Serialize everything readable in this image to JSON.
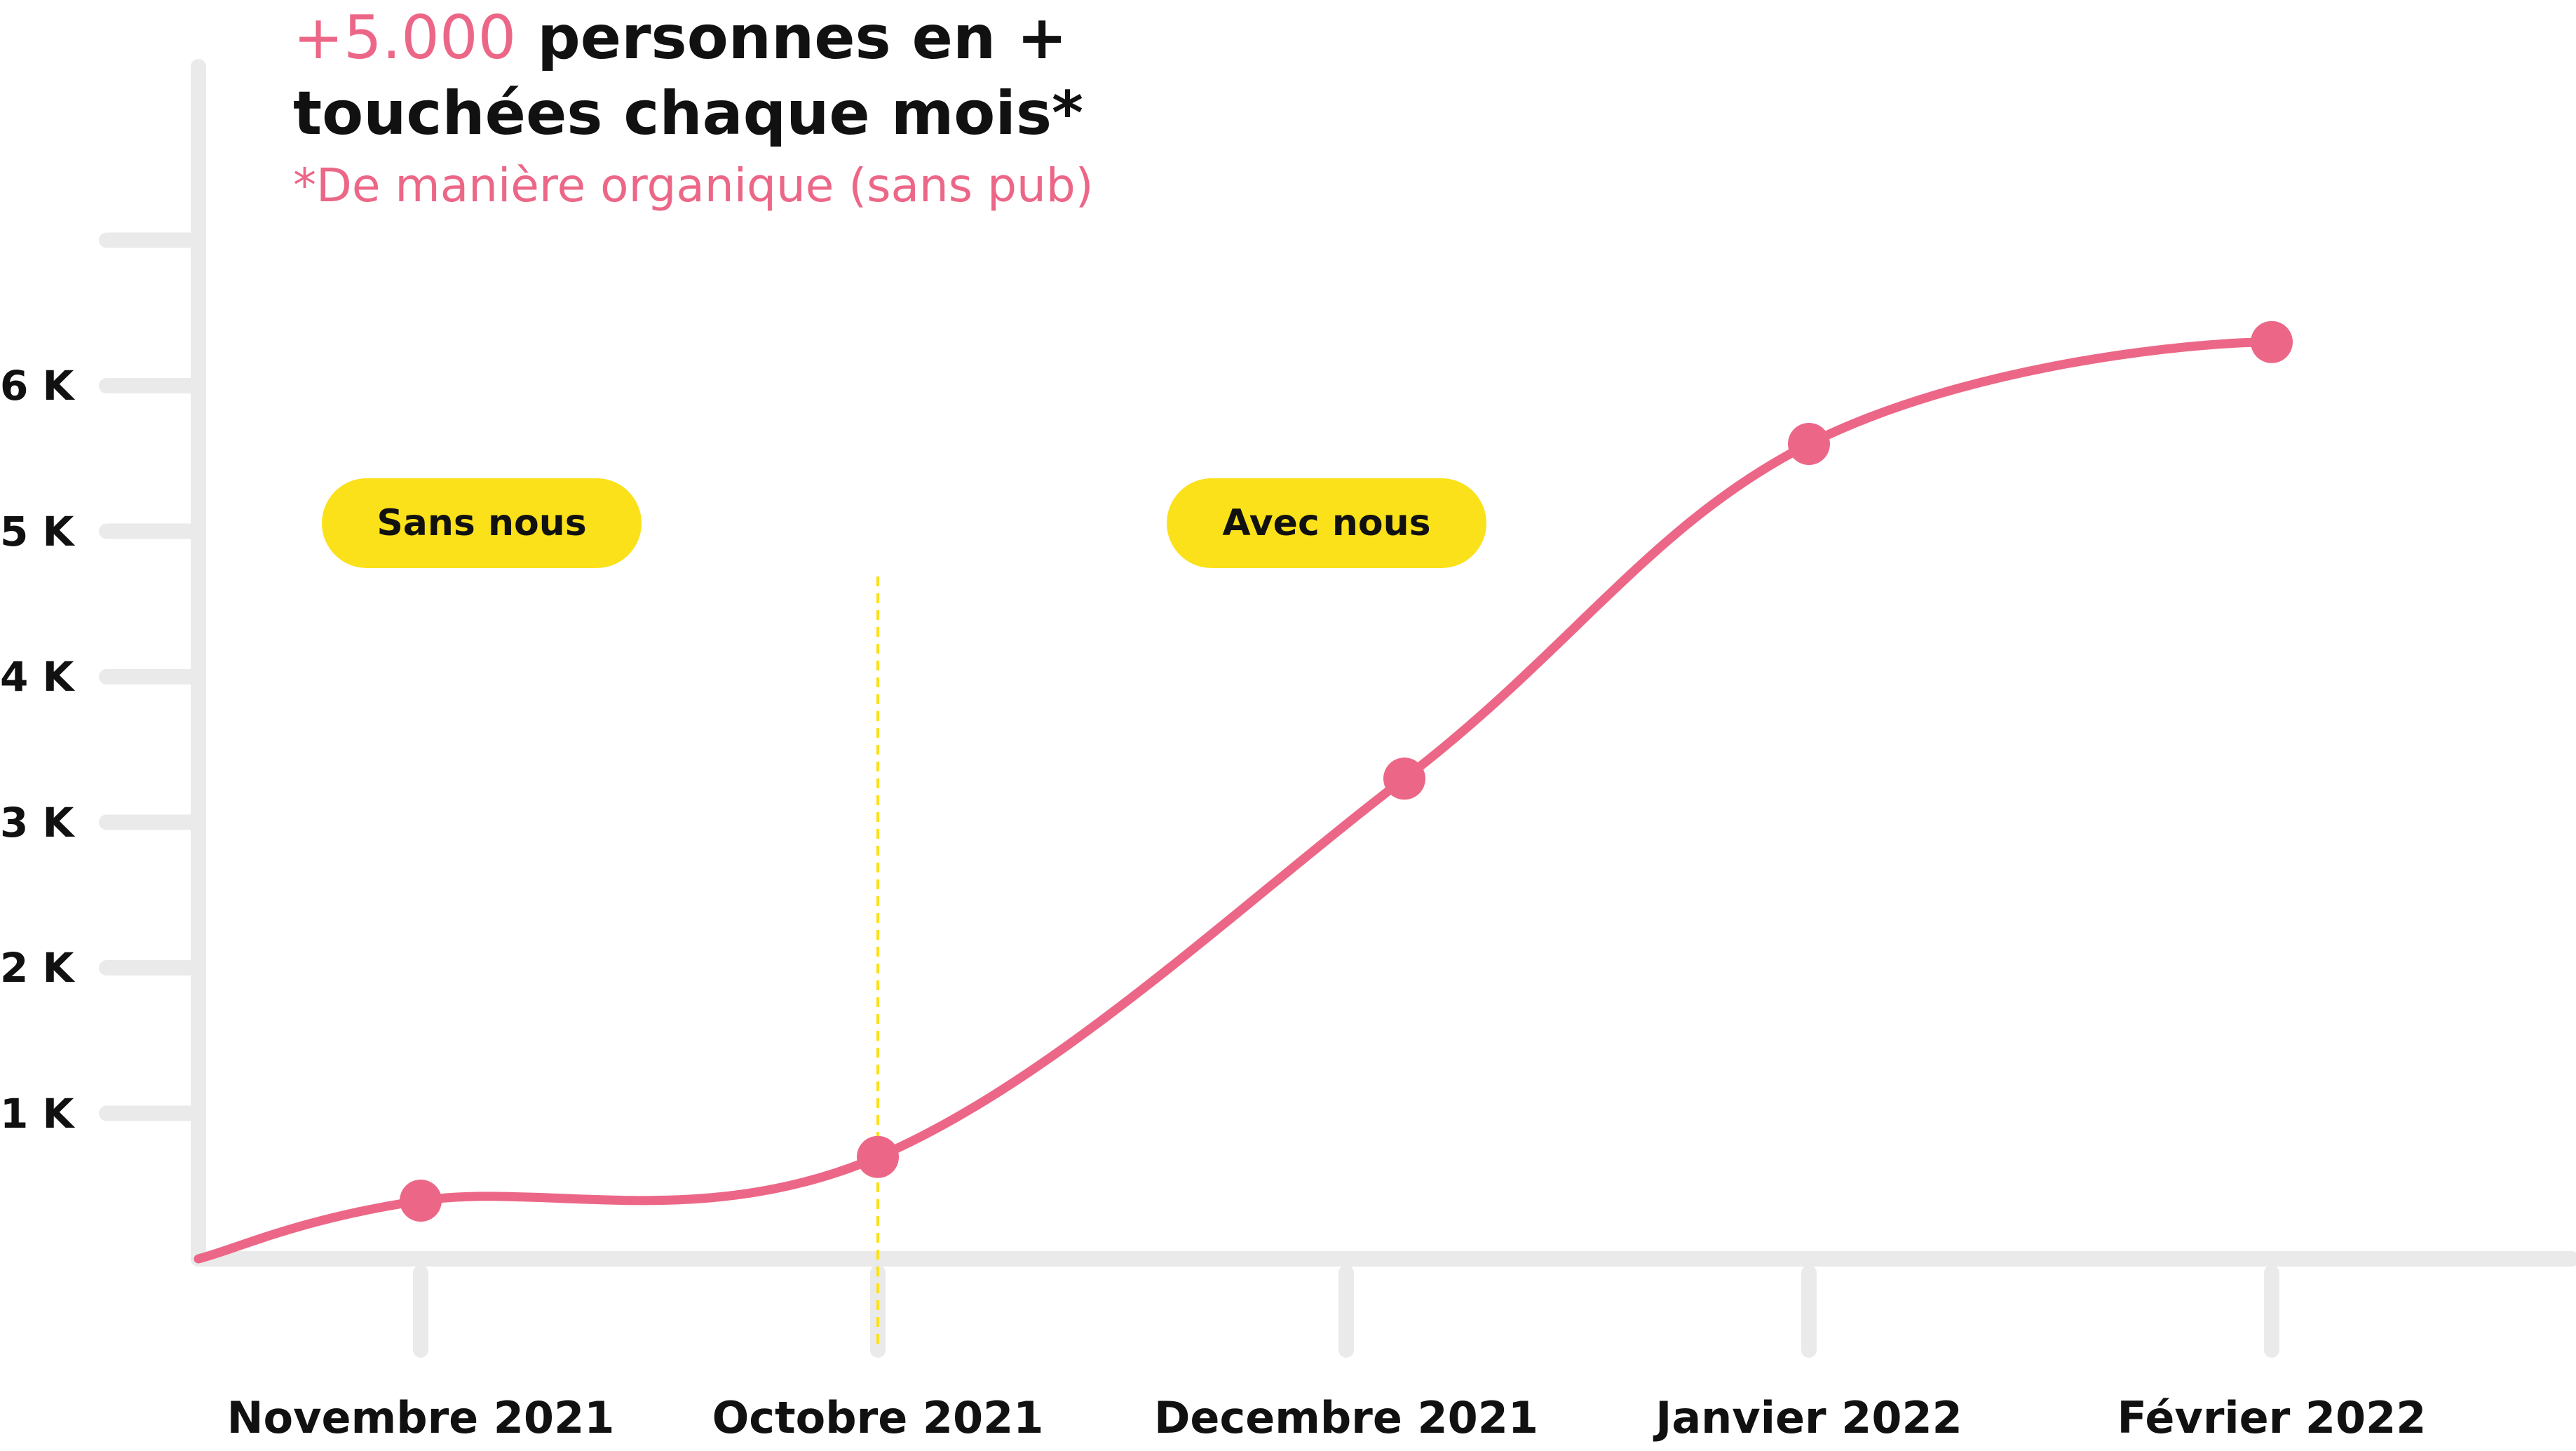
{
  "title": {
    "highlight": "+5.000",
    "line1_rest": " personnes en +",
    "line2": "touchées chaque mois*",
    "subtitle": "*De manière organique (sans pub)"
  },
  "badges": {
    "before": "Sans nous",
    "after": "Avec nous"
  },
  "colors": {
    "line": "#ec6787",
    "axis": "#eaeaea",
    "badge": "#fae11a",
    "divider": "#fae11a",
    "text": "#111111"
  },
  "chart_data": {
    "type": "line",
    "categories": [
      "Novembre 2021",
      "Octobre 2021",
      "Decembre 2021",
      "Janvier 2022",
      "Février 2022"
    ],
    "series": [
      {
        "values": [
          400,
          700,
          3300,
          5600,
          6300
        ],
        "start_value": 0
      }
    ],
    "yticks": [
      {
        "value": 1000,
        "label": "1 K"
      },
      {
        "value": 2000,
        "label": "2 K"
      },
      {
        "value": 3000,
        "label": "3 K"
      },
      {
        "value": 4000,
        "label": "4 K"
      },
      {
        "value": 5000,
        "label": "5 K"
      },
      {
        "value": 6000,
        "label": "6 K"
      },
      {
        "value": 7000,
        "label": ""
      }
    ],
    "ylim": [
      0,
      7000
    ],
    "divider_after_category": "Octobre 2021",
    "grid": false
  }
}
